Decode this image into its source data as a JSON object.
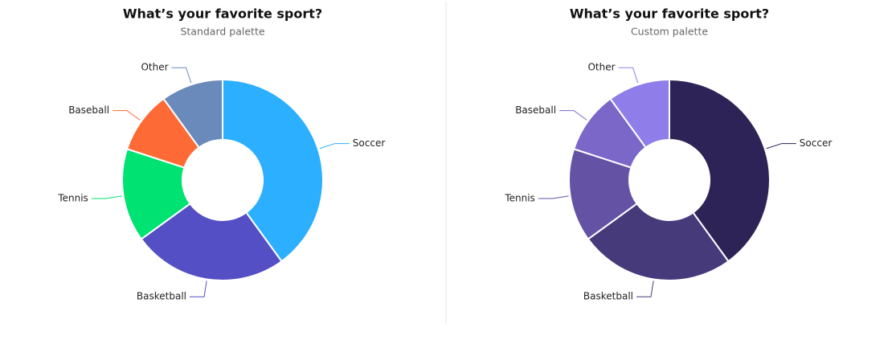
{
  "chart_data": [
    {
      "type": "pie",
      "title": "What’s your favorite sport?",
      "subtitle": "Standard palette",
      "categories": [
        "Soccer",
        "Basketball",
        "Tennis",
        "Baseball",
        "Other"
      ],
      "values": [
        40,
        25,
        15,
        10,
        10
      ],
      "colors": [
        "#2caffe",
        "#544fc5",
        "#00e272",
        "#fe6a35",
        "#6b8abc"
      ]
    },
    {
      "type": "pie",
      "title": "What’s your favorite sport?",
      "subtitle": "Custom palette",
      "categories": [
        "Soccer",
        "Basketball",
        "Tennis",
        "Baseball",
        "Other"
      ],
      "values": [
        40,
        25,
        15,
        10,
        10
      ],
      "colors": [
        "#2d2356",
        "#473a7a",
        "#6452a5",
        "#7a67c8",
        "#8f7eea"
      ]
    }
  ]
}
